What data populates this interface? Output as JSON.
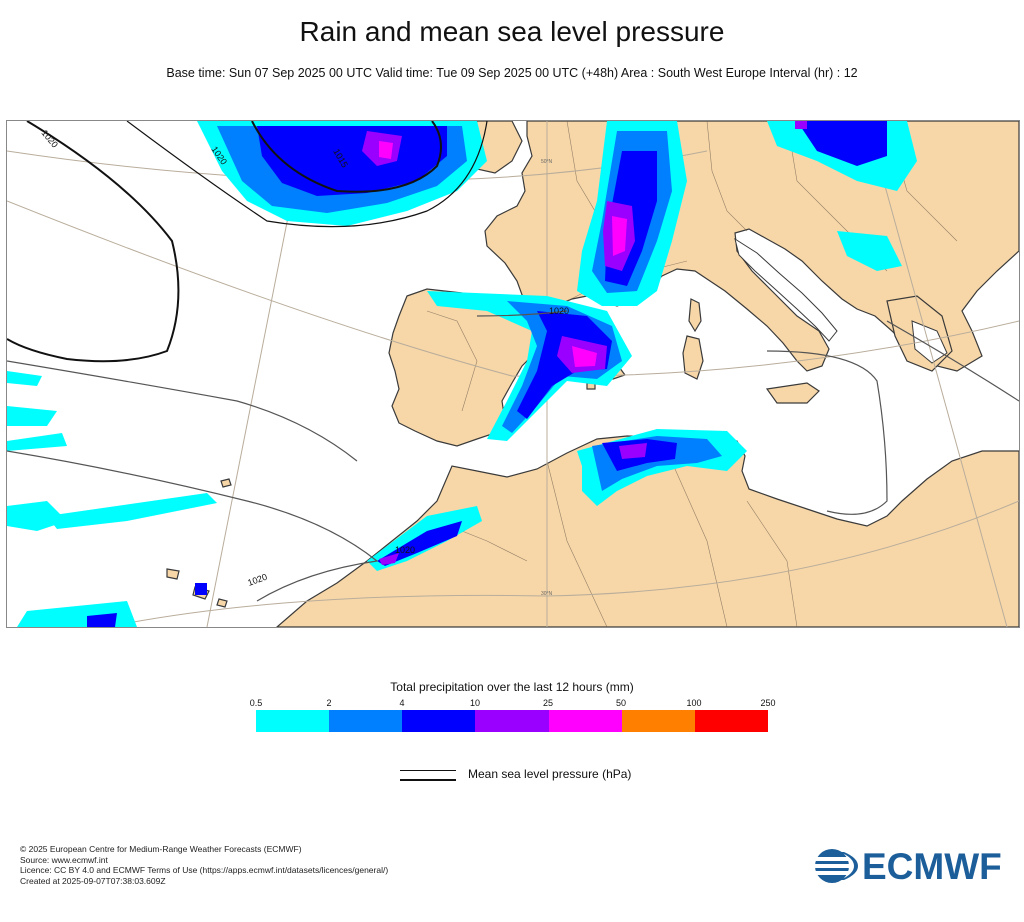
{
  "title": "Rain and mean sea level pressure",
  "subtitle": "Base time: Sun 07 Sep 2025 00 UTC Valid time: Tue 09 Sep 2025 00 UTC (+48h) Area : South West Europe Interval (hr) : 12",
  "map": {
    "isobar_labels": [
      "1020",
      "1020",
      "1015",
      "1020",
      "1020",
      "1020"
    ],
    "latitude_labels": [
      "50°N",
      "30°N"
    ],
    "colors": {
      "land": "#f7d7a8",
      "sea": "#ffffff",
      "coast": "#3a3a3a",
      "graticule": "#b9ad9b"
    }
  },
  "legend": {
    "title": "Total precipitation over the last 12 hours (mm)",
    "ticks": [
      "0.5",
      "2",
      "4",
      "10",
      "25",
      "50",
      "100",
      "250"
    ],
    "colors": [
      "#00fefe",
      "#0080ff",
      "#0000fe",
      "#9900ff",
      "#ff00ff",
      "#ff8000",
      "#ff0000"
    ],
    "mslp_label": "Mean sea level pressure (hPa)"
  },
  "footer": {
    "lines": [
      "© 2025 European Centre for Medium-Range Weather Forecasts (ECMWF)",
      "Source: www.ecmwf.int",
      "Licence: CC BY 4.0 and ECMWF Terms of Use (https://apps.ecmwf.int/datasets/licences/general/)",
      "Created at 2025-09-07T07:38:03.609Z"
    ]
  },
  "logo": {
    "text": "ECMWF",
    "color": "#1c5e9a"
  }
}
